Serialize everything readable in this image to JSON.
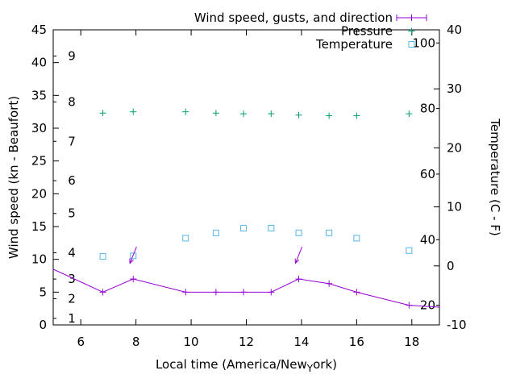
{
  "chart_data": {
    "type": "line",
    "title": "",
    "legend_position": "top-right-inside",
    "grid": false,
    "x_axis": {
      "label_full": "Local time (America/New_York)",
      "label_parts": [
        "Local time (America/New",
        "Y",
        "ork)"
      ],
      "range": [
        5,
        19
      ],
      "ticks": [
        6,
        8,
        10,
        12,
        14,
        16,
        18
      ]
    },
    "y_left": {
      "label": "Wind speed (kn - Beaufort)",
      "range": [
        0,
        45
      ],
      "ticks": [
        0,
        5,
        10,
        15,
        20,
        25,
        30,
        35,
        40,
        45
      ],
      "beaufort_labels": [
        "1",
        "2",
        "3",
        "4",
        "5",
        "6",
        "7",
        "8",
        "9"
      ],
      "beaufort_kn": [
        1,
        4,
        7,
        11,
        17,
        22,
        28,
        34,
        41
      ]
    },
    "y_right": {
      "label": "Temperature (C - F)",
      "range": [
        -10,
        40
      ],
      "ticks": [
        -10,
        0,
        10,
        20,
        30,
        40
      ],
      "fahrenheit_labels": [
        "20",
        "40",
        "60",
        "80",
        "100"
      ],
      "fahrenheit_values": [
        20,
        40,
        60,
        80,
        100
      ]
    },
    "times": [
      6.8,
      7.9,
      9.8,
      10.9,
      11.9,
      12.9,
      13.9,
      15.0,
      16.0,
      17.9
    ],
    "series": [
      {
        "name": "Wind speed, gusts, and direction",
        "color": "#9400d3",
        "marker": "plus",
        "legend_sample": "errorline",
        "axis": "left",
        "unit": "kn",
        "line_x": [
          5.0,
          6.8,
          7.9,
          9.8,
          10.9,
          11.9,
          12.9,
          13.9,
          15.0,
          16.0,
          17.9,
          19.0
        ],
        "line_y": [
          8.5,
          5,
          7,
          5,
          5,
          5,
          5,
          7,
          6.3,
          5,
          3,
          2.7
        ],
        "point_values": [
          5,
          7,
          5,
          5,
          5,
          5,
          7,
          6.3,
          5,
          3
        ]
      },
      {
        "name": "Pressure",
        "color": "#009e73",
        "marker": "plus",
        "legend_sample": "plus",
        "axis": "left-display",
        "note": "value scale not shown on chart",
        "display_y_kn": [
          32.3,
          32.5,
          32.5,
          32.3,
          32.2,
          32.2,
          32.0,
          31.9,
          31.9,
          32.2
        ]
      },
      {
        "name": "Temperature",
        "color": "#56b4e9",
        "marker": "square-open",
        "legend_sample": "square",
        "axis": "right",
        "unit": "C",
        "values_c": [
          1.6,
          1.7,
          4.7,
          5.6,
          6.4,
          6.4,
          5.6,
          5.6,
          4.7,
          2.6
        ]
      }
    ],
    "wind_direction_arrows": [
      {
        "x_from": 8.02,
        "kn_from": 11.9,
        "x_to": 7.78,
        "kn_to": 9.4
      },
      {
        "x_from": 14.02,
        "kn_from": 11.9,
        "x_to": 13.78,
        "kn_to": 9.4
      }
    ],
    "colors": {
      "axis": "#000000",
      "background": "#ffffff"
    }
  }
}
